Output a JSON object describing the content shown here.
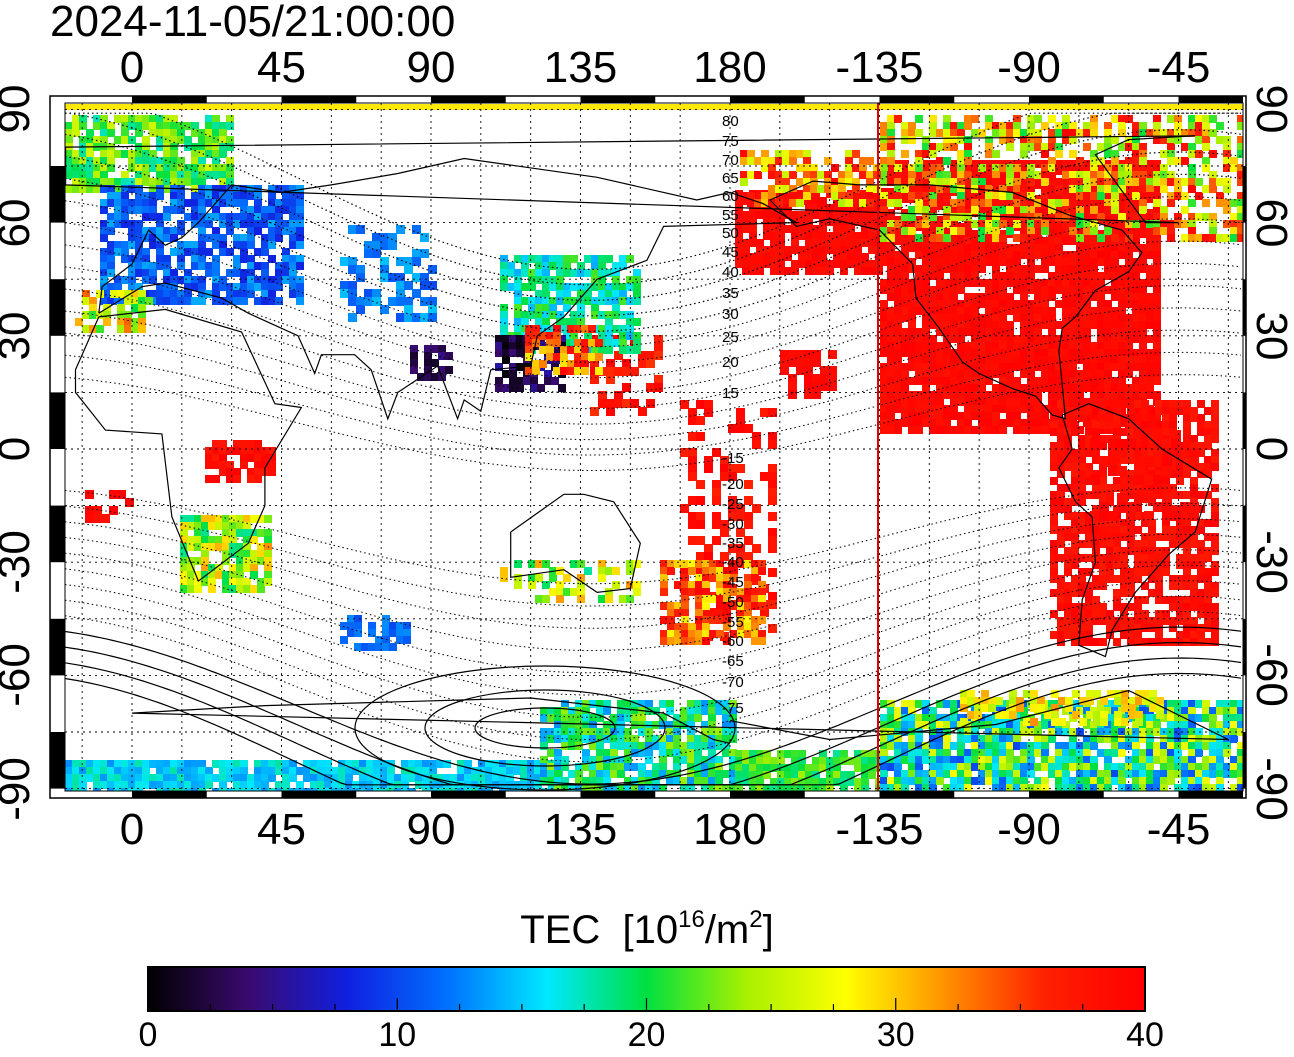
{
  "timestamp": "2024-11-05/21:00:00",
  "top_axis_labels": [
    "0",
    "45",
    "90",
    "135",
    "180",
    "-135",
    "-90",
    "-45"
  ],
  "bottom_axis_labels": [
    "0",
    "45",
    "90",
    "135",
    "180",
    "-135",
    "-90",
    "-45"
  ],
  "left_axis_labels": [
    "90",
    "60",
    "30",
    "0",
    "-30",
    "-60",
    "-90"
  ],
  "right_axis_labels": [
    "90",
    "60",
    "30",
    "0",
    "-30",
    "-60",
    "-90"
  ],
  "contour_labels": [
    "80",
    "75",
    "70",
    "65",
    "60",
    "55",
    "50",
    "45",
    "40",
    "35",
    "30",
    "25",
    "20",
    "15",
    "-15",
    "-20",
    "-25",
    "-30",
    "-35",
    "-40",
    "-45",
    "-50",
    "-55",
    "-60",
    "-65",
    "-70",
    "-75"
  ],
  "terminator_longitude": "-135",
  "colorbar": {
    "title": "TEC",
    "unit_prefix": "[10",
    "unit_exp1": "16",
    "unit_mid": "/m",
    "unit_exp2": "2",
    "unit_suffix": "]",
    "min": 0,
    "max": 40,
    "tick_labels": [
      "0",
      "10",
      "20",
      "30",
      "40"
    ],
    "stops": [
      "#000000",
      "#3a0a6e",
      "#1020e0",
      "#0070ff",
      "#00e8ff",
      "#00e040",
      "#a8f000",
      "#ffff00",
      "#ff9000",
      "#ff2000",
      "#ff0000"
    ]
  },
  "colors": {
    "land_outline": "#000000",
    "grid": "#000000",
    "terminator": "#e00000",
    "high_tec": "#ff0000"
  }
}
